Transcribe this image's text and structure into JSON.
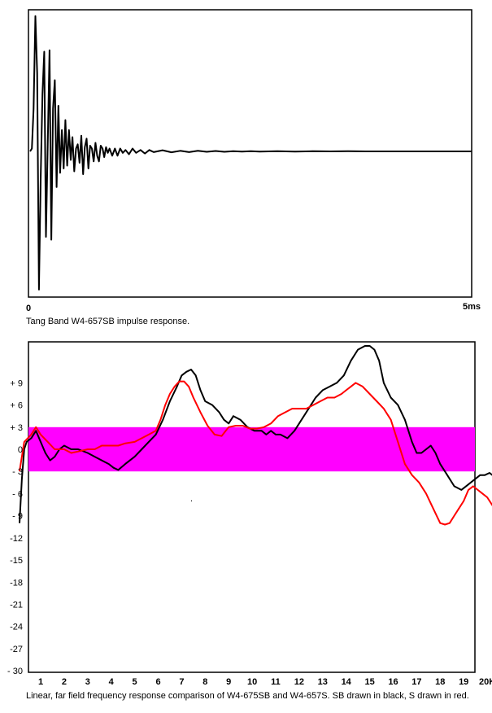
{
  "chart_data": [
    {
      "type": "line",
      "caption": "Tang Band W4-657SB impulse response.",
      "x_tick_labels": [
        "0",
        "5ms"
      ],
      "xlim": [
        0,
        5
      ],
      "ylim": [
        -1,
        1
      ],
      "series": [
        {
          "color": "#000000",
          "x": [
            0,
            0.02,
            0.04,
            0.06,
            0.08,
            0.1,
            0.12,
            0.14,
            0.16,
            0.18,
            0.2,
            0.22,
            0.24,
            0.26,
            0.28,
            0.3,
            0.32,
            0.34,
            0.36,
            0.38,
            0.4,
            0.42,
            0.44,
            0.46,
            0.48,
            0.5,
            0.52,
            0.54,
            0.56,
            0.58,
            0.6,
            0.62,
            0.64,
            0.66,
            0.68,
            0.7,
            0.72,
            0.74,
            0.76,
            0.78,
            0.8,
            0.82,
            0.84,
            0.86,
            0.88,
            0.9,
            0.93,
            0.96,
            0.99,
            1.02,
            1.05,
            1.08,
            1.12,
            1.16,
            1.2,
            1.25,
            1.3,
            1.35,
            1.4,
            1.5,
            1.6,
            1.7,
            1.8,
            1.9,
            2.0,
            2.1,
            2.2,
            2.3,
            2.4,
            2.5,
            2.6,
            2.8,
            3.0,
            3.2,
            3.4,
            3.6,
            3.8,
            4.0,
            4.5,
            5.0
          ],
          "y": [
            0,
            0.02,
            0.3,
            0.95,
            0.55,
            -0.97,
            -0.2,
            0.4,
            0.7,
            -0.6,
            0.05,
            0.71,
            -0.62,
            0.3,
            0.5,
            -0.25,
            0.32,
            -0.15,
            0.15,
            -0.12,
            0.22,
            -0.1,
            0.15,
            -0.06,
            0.1,
            -0.14,
            0.02,
            0.05,
            -0.08,
            0.11,
            -0.16,
            0.03,
            0.09,
            -0.12,
            0.04,
            0.02,
            -0.07,
            0.06,
            -0.03,
            -0.07,
            0.04,
            0.02,
            -0.04,
            0.03,
            -0.01,
            0.02,
            -0.03,
            0.02,
            -0.03,
            0.02,
            -0.01,
            0.01,
            -0.02,
            0.02,
            -0.01,
            0.01,
            -0.015,
            0.01,
            -0.005,
            0.008,
            -0.006,
            0.004,
            -0.005,
            0.004,
            -0.003,
            0.003,
            -0.003,
            0.002,
            -0.002,
            0.002,
            -0.002,
            0.001,
            -0.001,
            0.001,
            0,
            0.001,
            0,
            0,
            0,
            0
          ]
        }
      ]
    },
    {
      "type": "line",
      "caption": "Linear, far field frequency response comparison of W4-675SB and W4-657S.  SB drawn in black, S drawn in red.",
      "x_tick_labels": [
        "1",
        "2",
        "3",
        "4",
        "5",
        "6",
        "7",
        "8",
        "9",
        "10",
        "11",
        "12",
        "13",
        "14",
        "15",
        "16",
        "17",
        "18",
        "19",
        "20K"
      ],
      "y_tick_labels": [
        "+ 9",
        "+ 6",
        "+ 3",
        "0",
        "- 3",
        "- 6",
        "- 9",
        "-12",
        "-15",
        "-18",
        "-21",
        "-24",
        "-27",
        "- 30"
      ],
      "y_ticks": [
        9,
        6,
        3,
        0,
        -3,
        -6,
        -9,
        -12,
        -15,
        -18,
        -21,
        -24,
        -27,
        -30
      ],
      "xlim": [
        0.1,
        20.4
      ],
      "ylim": [
        -30,
        13.5
      ],
      "band": {
        "from": -3,
        "to": 3,
        "color": "#ff00ff"
      },
      "series": [
        {
          "color": "#000000",
          "x": [
            0.1,
            0.2,
            0.3,
            0.4,
            0.6,
            0.8,
            1.0,
            1.2,
            1.4,
            1.6,
            1.8,
            2.0,
            2.3,
            2.6,
            3.0,
            3.3,
            3.6,
            3.9,
            4.1,
            4.3,
            4.6,
            5.0,
            5.3,
            5.6,
            5.9,
            6.2,
            6.5,
            6.8,
            7.0,
            7.2,
            7.4,
            7.6,
            7.8,
            8.0,
            8.3,
            8.6,
            8.8,
            9.0,
            9.2,
            9.5,
            9.8,
            10.1,
            10.4,
            10.6,
            10.8,
            11.0,
            11.2,
            11.5,
            11.8,
            12.1,
            12.4,
            12.7,
            13.0,
            13.3,
            13.6,
            13.9,
            14.2,
            14.5,
            14.8,
            15.0,
            15.2,
            15.4,
            15.6,
            15.9,
            16.2,
            16.5,
            16.8,
            17.0,
            17.2,
            17.4,
            17.6,
            17.8,
            18.0,
            18.3,
            18.6,
            18.9,
            19.1,
            19.3,
            19.5,
            19.7,
            19.9,
            20.1,
            20.3
          ],
          "y": [
            -10,
            -4,
            0,
            1,
            1.5,
            2.5,
            1,
            -0.5,
            -1.5,
            -1,
            0,
            0.5,
            0,
            0,
            -0.5,
            -1,
            -1.5,
            -2,
            -2.5,
            -2.8,
            -2,
            -1,
            0,
            1,
            2,
            4,
            6.5,
            8.5,
            10,
            10.5,
            10.8,
            10,
            8,
            6.5,
            6,
            5,
            4,
            3.5,
            4.5,
            4,
            3,
            2.5,
            2.5,
            2,
            2.5,
            2,
            2,
            1.5,
            2.5,
            4,
            5.5,
            7,
            8,
            8.5,
            9,
            10,
            12,
            13.5,
            14,
            14,
            13.5,
            12,
            9,
            7,
            6,
            4,
            1,
            -0.5,
            -0.5,
            0,
            0.5,
            -0.5,
            -2,
            -3.5,
            -5,
            -5.5,
            -5,
            -4.5,
            -4,
            -3.5,
            -3.5,
            -3.2,
            -3.7
          ]
        },
        {
          "color": "#ff0000",
          "x": [
            0.1,
            0.3,
            0.6,
            0.8,
            1.0,
            1.3,
            1.6,
            2.0,
            2.3,
            2.6,
            3.0,
            3.3,
            3.6,
            4.0,
            4.3,
            4.6,
            5.0,
            5.3,
            5.6,
            5.9,
            6.1,
            6.3,
            6.5,
            6.7,
            6.9,
            7.1,
            7.3,
            7.5,
            7.8,
            8.1,
            8.4,
            8.7,
            9.0,
            9.3,
            9.6,
            9.9,
            10.2,
            10.5,
            10.8,
            11.1,
            11.4,
            11.7,
            12.0,
            12.3,
            12.6,
            12.9,
            13.2,
            13.5,
            13.8,
            14.0,
            14.2,
            14.4,
            14.7,
            15.0,
            15.3,
            15.6,
            15.9,
            16.2,
            16.5,
            16.8,
            17.1,
            17.4,
            17.7,
            18.0,
            18.2,
            18.4,
            18.6,
            18.8,
            19.0,
            19.2,
            19.4,
            19.6,
            19.8,
            20.0,
            20.2,
            20.4
          ],
          "y": [
            -3,
            1,
            2,
            3,
            2,
            1,
            0,
            0,
            -0.5,
            -0.3,
            0,
            0,
            0.5,
            0.5,
            0.5,
            0.8,
            1,
            1.5,
            2,
            2.5,
            4,
            6,
            7.5,
            8.5,
            9.2,
            9.2,
            8.5,
            7,
            5,
            3.2,
            2,
            1.8,
            3,
            3.2,
            3.2,
            2.8,
            2.8,
            3,
            3.5,
            4.5,
            5,
            5.5,
            5.5,
            5.5,
            6,
            6.5,
            7,
            7,
            7.5,
            8,
            8.5,
            9,
            8.5,
            7.5,
            6.5,
            5.5,
            4,
            1,
            -2,
            -3.5,
            -4.5,
            -6,
            -8,
            -10,
            -10.2,
            -10,
            -9,
            -8,
            -7,
            -5.5,
            -5,
            -5.5,
            -6,
            -6.5,
            -7.5,
            -8.5
          ]
        }
      ]
    }
  ]
}
